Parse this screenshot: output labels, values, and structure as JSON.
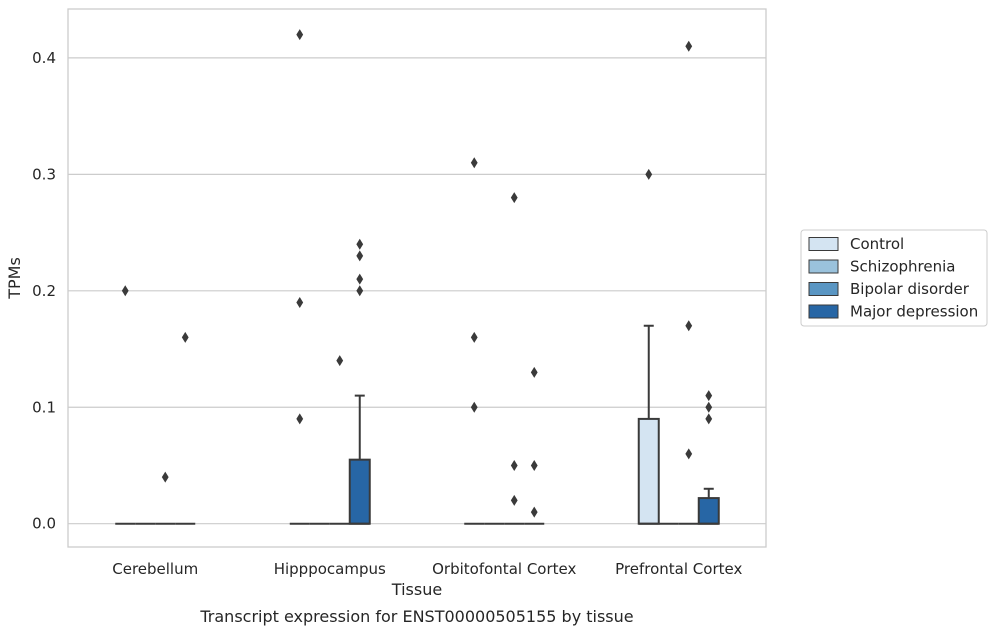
{
  "chart_data": {
    "type": "box",
    "caption": "Transcript expression for ENST00000505155 by tissue",
    "xlabel": "Tissue",
    "ylabel": "TPMs",
    "ylim": [
      -0.02,
      0.442
    ],
    "yticks": [
      0.0,
      0.1,
      0.2,
      0.3,
      0.4
    ],
    "ytick_labels": [
      "0.0",
      "0.1",
      "0.2",
      "0.3",
      "0.4"
    ],
    "grid": "horizontal",
    "legend_position": "right",
    "categories": [
      "Cerebellum",
      "Hipppocampus",
      "Orbitofontal Cortex",
      "Prefrontal Cortex"
    ],
    "series": [
      {
        "name": "Control",
        "color": "#d4e4f2",
        "boxes": [
          {
            "q1": 0,
            "median": 0,
            "q3": 0,
            "whisker_low": 0,
            "whisker_high": 0,
            "outliers": [
              0.2
            ]
          },
          {
            "q1": 0,
            "median": 0,
            "q3": 0,
            "whisker_low": 0,
            "whisker_high": 0,
            "outliers": [
              0.42,
              0.19,
              0.09
            ]
          },
          {
            "q1": 0,
            "median": 0,
            "q3": 0,
            "whisker_low": 0,
            "whisker_high": 0,
            "outliers": [
              0.31,
              0.16,
              0.1
            ]
          },
          {
            "q1": 0,
            "median": 0,
            "q3": 0.09,
            "whisker_low": 0,
            "whisker_high": 0.17,
            "outliers": [
              0.3
            ]
          }
        ]
      },
      {
        "name": "Schizophrenia",
        "color": "#9ac2dc",
        "boxes": [
          {
            "q1": 0,
            "median": 0,
            "q3": 0,
            "whisker_low": 0,
            "whisker_high": 0,
            "outliers": []
          },
          {
            "q1": 0,
            "median": 0,
            "q3": 0,
            "whisker_low": 0,
            "whisker_high": 0,
            "outliers": []
          },
          {
            "q1": 0,
            "median": 0,
            "q3": 0,
            "whisker_low": 0,
            "whisker_high": 0,
            "outliers": []
          },
          {
            "q1": 0,
            "median": 0,
            "q3": 0,
            "whisker_low": 0,
            "whisker_high": 0,
            "outliers": []
          }
        ]
      },
      {
        "name": "Bipolar disorder",
        "color": "#5a96c3",
        "boxes": [
          {
            "q1": 0,
            "median": 0,
            "q3": 0,
            "whisker_low": 0,
            "whisker_high": 0,
            "outliers": [
              0.04
            ]
          },
          {
            "q1": 0,
            "median": 0,
            "q3": 0,
            "whisker_low": 0,
            "whisker_high": 0,
            "outliers": [
              0.14
            ]
          },
          {
            "q1": 0,
            "median": 0,
            "q3": 0,
            "whisker_low": 0,
            "whisker_high": 0,
            "outliers": [
              0.28,
              0.05,
              0.02
            ]
          },
          {
            "q1": 0,
            "median": 0,
            "q3": 0,
            "whisker_low": 0,
            "whisker_high": 0,
            "outliers": [
              0.41,
              0.17,
              0.06
            ]
          }
        ]
      },
      {
        "name": "Major depression",
        "color": "#2766a5",
        "boxes": [
          {
            "q1": 0,
            "median": 0,
            "q3": 0,
            "whisker_low": 0,
            "whisker_high": 0,
            "outliers": [
              0.16
            ]
          },
          {
            "q1": 0,
            "median": 0,
            "q3": 0.055,
            "whisker_low": 0,
            "whisker_high": 0.11,
            "outliers": [
              0.24,
              0.23,
              0.21,
              0.2
            ]
          },
          {
            "q1": 0,
            "median": 0,
            "q3": 0,
            "whisker_low": 0,
            "whisker_high": 0,
            "outliers": [
              0.13,
              0.05,
              0.01
            ]
          },
          {
            "q1": 0,
            "median": 0,
            "q3": 0.022,
            "whisker_low": 0,
            "whisker_high": 0.03,
            "outliers": [
              0.11,
              0.1,
              0.09
            ]
          }
        ]
      }
    ]
  }
}
